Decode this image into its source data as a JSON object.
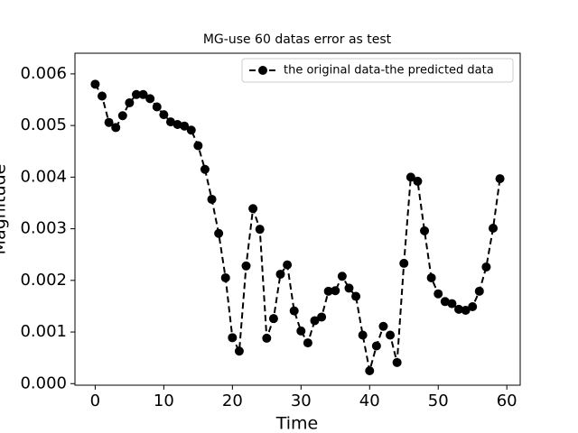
{
  "chart_data": {
    "type": "line",
    "title": "MG-use 60 datas error as test",
    "x_label": "Time",
    "y_label": "Magnitude",
    "x": [
      0,
      1,
      2,
      3,
      4,
      5,
      6,
      7,
      8,
      9,
      10,
      11,
      12,
      13,
      14,
      15,
      16,
      17,
      18,
      19,
      20,
      21,
      22,
      23,
      24,
      25,
      26,
      27,
      28,
      29,
      30,
      31,
      32,
      33,
      34,
      35,
      36,
      37,
      38,
      39,
      40,
      41,
      42,
      43,
      44,
      45,
      46,
      47,
      48,
      49,
      50,
      51,
      52,
      53,
      54,
      55,
      56,
      57,
      58,
      59
    ],
    "series": [
      {
        "name": "the original data-the predicted data",
        "color": "#000000",
        "linestyle": "dashed",
        "marker": "circle",
        "values": [
          0.0058,
          0.00557,
          0.00506,
          0.00496,
          0.00519,
          0.00544,
          0.0056,
          0.0056,
          0.00552,
          0.00536,
          0.00521,
          0.00507,
          0.00502,
          0.00499,
          0.00491,
          0.00461,
          0.00415,
          0.00357,
          0.00291,
          0.00205,
          0.00089,
          0.00063,
          0.00228,
          0.00339,
          0.00299,
          0.00088,
          0.00126,
          0.00212,
          0.0023,
          0.00141,
          0.00102,
          0.00079,
          0.00122,
          0.00129,
          0.00179,
          0.0018,
          0.00208,
          0.00185,
          0.00169,
          0.00094,
          0.00025,
          0.00073,
          0.00111,
          0.00094,
          0.00041,
          0.00233,
          0.004,
          0.00392,
          0.00296,
          0.00205,
          0.00174,
          0.00159,
          0.00155,
          0.00144,
          0.00142,
          0.00149,
          0.00179,
          0.00226,
          0.00301,
          0.00397
        ]
      }
    ],
    "xlim": [
      -2.95,
      61.95
    ],
    "ylim": [
      -3e-05,
      0.0064
    ],
    "xticks": [
      0,
      10,
      20,
      30,
      40,
      50,
      60
    ],
    "yticks": [
      {
        "value": 0,
        "label": "0.000"
      },
      {
        "value": 0.001,
        "label": "0.001"
      },
      {
        "value": 0.002,
        "label": "0.002"
      },
      {
        "value": 0.003,
        "label": "0.003"
      },
      {
        "value": 0.004,
        "label": "0.004"
      },
      {
        "value": 0.005,
        "label": "0.005"
      },
      {
        "value": 0.006,
        "label": "0.006"
      }
    ],
    "legend": "upper right",
    "grid": false
  }
}
